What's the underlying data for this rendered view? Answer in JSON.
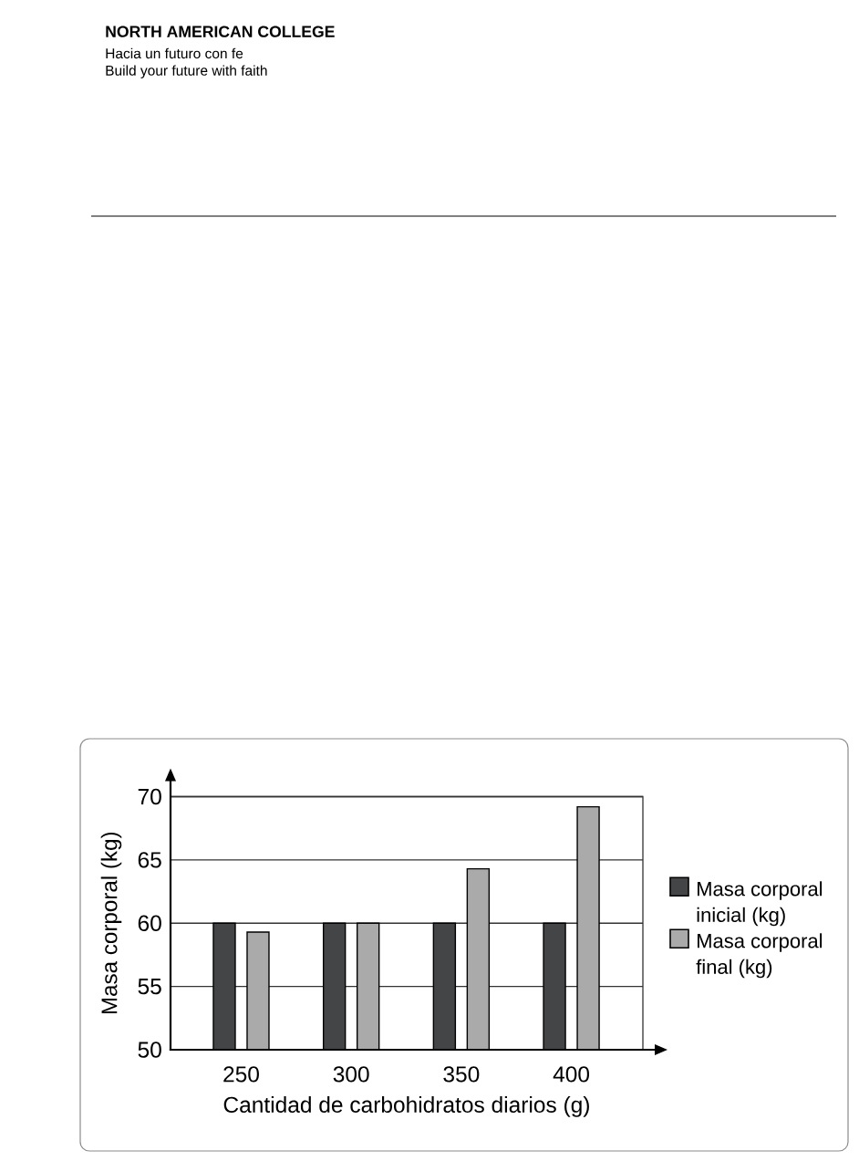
{
  "chart_data": {
    "type": "bar",
    "annotations": [
      "NORTH AMERICAN COLLEGE",
      "Hacia un futuro con fe",
      "Build your future with faith"
    ],
    "xlabel": "Cantidad de carbohidratos diarios (g)",
    "ylabel": "Masa corporal (kg)",
    "categories": [
      "250",
      "300",
      "350",
      "400"
    ],
    "series": [
      {
        "name": "Masa corporal inicial (kg)",
        "color": "#444546",
        "values": [
          60,
          60,
          60,
          60
        ]
      },
      {
        "name": "Masa corporal final (kg)",
        "color": "#aaaaaa",
        "values": [
          59.3,
          60,
          64.3,
          69.2
        ]
      }
    ],
    "ylim": [
      50,
      70
    ],
    "yticks": [
      50,
      55,
      60,
      65,
      70
    ],
    "grid": "y",
    "legend": "right"
  }
}
